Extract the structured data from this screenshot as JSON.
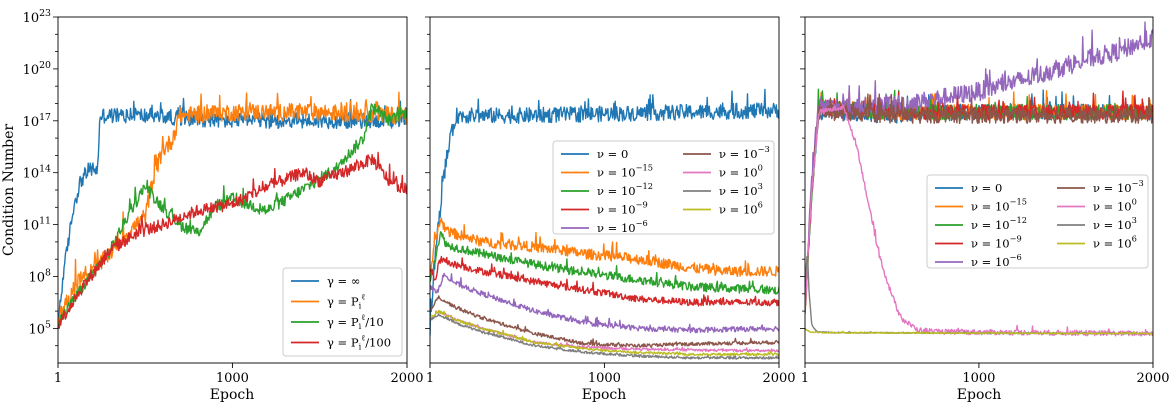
{
  "figure": {
    "ylabel": "Condition Number"
  },
  "chart_data": [
    {
      "type": "line",
      "panel": 1,
      "xlabel": "Epoch",
      "ylabel": "Condition Number",
      "x_range": [
        1,
        2000
      ],
      "x_ticks": [
        "1",
        "1000",
        "2000"
      ],
      "y_log_range": [
        3,
        23
      ],
      "y_ticks": [
        "10^5",
        "10^8",
        "10^11",
        "10^14",
        "10^17",
        "10^20",
        "10^23"
      ],
      "legend": "bottom-right",
      "legend_columns": 1,
      "series": [
        {
          "name": "γ = ∞",
          "color": "#1f77b4",
          "noise": 0.45,
          "points": [
            [
              1,
              5
            ],
            [
              30,
              8
            ],
            [
              60,
              10
            ],
            [
              90,
              12
            ],
            [
              130,
              13.5
            ],
            [
              180,
              14.2
            ],
            [
              230,
              14.2
            ],
            [
              240,
              17.3
            ],
            [
              500,
              17.3
            ],
            [
              1000,
              17
            ],
            [
              1500,
              17
            ],
            [
              2000,
              17
            ]
          ]
        },
        {
          "name": "γ = P_i^ℓ",
          "color": "#ff7f0e",
          "noise": 0.5,
          "points": [
            [
              1,
              5.5
            ],
            [
              100,
              7.5
            ],
            [
              250,
              8.8
            ],
            [
              400,
              10.5
            ],
            [
              500,
              11.5
            ],
            [
              550,
              13.8
            ],
            [
              600,
              15.3
            ],
            [
              650,
              15.8
            ],
            [
              700,
              17.3
            ],
            [
              1000,
              17.5
            ],
            [
              1500,
              17.5
            ],
            [
              2000,
              17.3
            ]
          ]
        },
        {
          "name": "γ = P_i^ℓ/10",
          "color": "#2ca02c",
          "noise": 0.35,
          "points": [
            [
              1,
              5.3
            ],
            [
              150,
              7.5
            ],
            [
              300,
              9.5
            ],
            [
              400,
              11.5
            ],
            [
              500,
              13.2
            ],
            [
              600,
              12
            ],
            [
              700,
              11
            ],
            [
              800,
              10.5
            ],
            [
              900,
              12
            ],
            [
              1000,
              12.5
            ],
            [
              1200,
              11.8
            ],
            [
              1400,
              13
            ],
            [
              1600,
              14.3
            ],
            [
              1750,
              16
            ],
            [
              1800,
              17.8
            ],
            [
              1900,
              17
            ],
            [
              2000,
              17.5
            ]
          ]
        },
        {
          "name": "γ = P_i^ℓ/100",
          "color": "#d62728",
          "noise": 0.35,
          "points": [
            [
              1,
              5.2
            ],
            [
              150,
              7.5
            ],
            [
              300,
              9.5
            ],
            [
              450,
              10.5
            ],
            [
              600,
              11
            ],
            [
              800,
              11.8
            ],
            [
              1000,
              12.2
            ],
            [
              1200,
              13.2
            ],
            [
              1400,
              14
            ],
            [
              1500,
              13.5
            ],
            [
              1700,
              14.3
            ],
            [
              1800,
              14.8
            ],
            [
              1900,
              13.5
            ],
            [
              2000,
              13
            ]
          ]
        }
      ]
    },
    {
      "type": "line",
      "panel": 2,
      "xlabel": "Epoch",
      "x_range": [
        1,
        2000
      ],
      "x_ticks": [
        "1",
        "1000",
        "2000"
      ],
      "y_log_range": [
        3,
        23
      ],
      "legend": "middle-right",
      "legend_columns": 2,
      "series": [
        {
          "name": "ν = 0",
          "color": "#1f77b4",
          "noise": 0.45,
          "points": [
            [
              1,
              5
            ],
            [
              30,
              9
            ],
            [
              60,
              12
            ],
            [
              90,
              14.5
            ],
            [
              120,
              16
            ],
            [
              150,
              17.3
            ],
            [
              500,
              17.3
            ],
            [
              1000,
              17.4
            ],
            [
              1500,
              17.5
            ],
            [
              2000,
              17.6
            ]
          ]
        },
        {
          "name": "ν = 10^-15",
          "color": "#ff7f0e",
          "noise": 0.3,
          "points": [
            [
              1,
              8
            ],
            [
              30,
              10
            ],
            [
              60,
              11.3
            ],
            [
              100,
              10.6
            ],
            [
              300,
              10
            ],
            [
              600,
              9.7
            ],
            [
              900,
              9.3
            ],
            [
              1200,
              9
            ],
            [
              1500,
              8.5
            ],
            [
              1700,
              8.3
            ],
            [
              2000,
              8.3
            ]
          ]
        },
        {
          "name": "ν = 10^-12",
          "color": "#2ca02c",
          "noise": 0.25,
          "points": [
            [
              1,
              7.8
            ],
            [
              30,
              9
            ],
            [
              60,
              10.5
            ],
            [
              100,
              9.8
            ],
            [
              300,
              9.3
            ],
            [
              600,
              8.7
            ],
            [
              900,
              8.2
            ],
            [
              1200,
              7.8
            ],
            [
              1500,
              7.4
            ],
            [
              2000,
              7.2
            ]
          ]
        },
        {
          "name": "ν = 10^-9",
          "color": "#d62728",
          "noise": 0.2,
          "points": [
            [
              1,
              8.5
            ],
            [
              30,
              7.8
            ],
            [
              60,
              9
            ],
            [
              100,
              8.8
            ],
            [
              300,
              8.3
            ],
            [
              600,
              7.7
            ],
            [
              900,
              7.2
            ],
            [
              1200,
              6.7
            ],
            [
              1500,
              6.5
            ],
            [
              2000,
              6.5
            ]
          ]
        },
        {
          "name": "ν = 10^-6",
          "color": "#9467bd",
          "noise": 0.15,
          "points": [
            [
              1,
              7.5
            ],
            [
              40,
              7
            ],
            [
              80,
              8.1
            ],
            [
              150,
              7.6
            ],
            [
              300,
              7
            ],
            [
              600,
              6
            ],
            [
              900,
              5.3
            ],
            [
              1200,
              5
            ],
            [
              1500,
              4.9
            ],
            [
              2000,
              5
            ]
          ]
        },
        {
          "name": "ν = 10^-3",
          "color": "#8c564b",
          "noise": 0.1,
          "points": [
            [
              1,
              6
            ],
            [
              50,
              6.8
            ],
            [
              150,
              6.2
            ],
            [
              300,
              5.6
            ],
            [
              600,
              4.7
            ],
            [
              900,
              4.1
            ],
            [
              1200,
              4
            ],
            [
              1500,
              4.1
            ],
            [
              2000,
              4.2
            ]
          ]
        },
        {
          "name": "ν = 10^0",
          "color": "#e377c2",
          "noise": 0.07,
          "points": [
            [
              1,
              5.5
            ],
            [
              50,
              6
            ],
            [
              150,
              5.5
            ],
            [
              300,
              5
            ],
            [
              600,
              4.2
            ],
            [
              900,
              3.9
            ],
            [
              1200,
              3.8
            ],
            [
              1500,
              3.75
            ],
            [
              2000,
              3.7
            ]
          ]
        },
        {
          "name": "ν = 10^3",
          "color": "#7f7f7f",
          "noise": 0.07,
          "points": [
            [
              1,
              5.5
            ],
            [
              50,
              5.8
            ],
            [
              150,
              5.3
            ],
            [
              300,
              4.8
            ],
            [
              600,
              4
            ],
            [
              900,
              3.6
            ],
            [
              1200,
              3.4
            ],
            [
              1500,
              3.3
            ],
            [
              2000,
              3.3
            ]
          ]
        },
        {
          "name": "ν = 10^6",
          "color": "#bcbd22",
          "noise": 0.07,
          "points": [
            [
              1,
              5.6
            ],
            [
              50,
              6
            ],
            [
              150,
              5.5
            ],
            [
              300,
              5
            ],
            [
              600,
              4.2
            ],
            [
              900,
              3.8
            ],
            [
              1200,
              3.6
            ],
            [
              1500,
              3.5
            ],
            [
              2000,
              3.5
            ]
          ]
        }
      ]
    },
    {
      "type": "line",
      "panel": 3,
      "xlabel": "Epoch",
      "x_range": [
        1,
        2000
      ],
      "x_ticks": [
        "1",
        "1000",
        "2000"
      ],
      "y_log_range": [
        3,
        23
      ],
      "legend": "middle-right",
      "legend_columns": 2,
      "series": [
        {
          "name": "ν = 0",
          "color": "#1f77b4",
          "noise": 0.45,
          "points": [
            [
              1,
              6
            ],
            [
              40,
              13
            ],
            [
              80,
              17.5
            ],
            [
              500,
              17.3
            ],
            [
              1000,
              17.5
            ],
            [
              2000,
              17.5
            ]
          ]
        },
        {
          "name": "ν = 10^-15",
          "color": "#ff7f0e",
          "noise": 0.45,
          "points": [
            [
              1,
              6
            ],
            [
              40,
              13
            ],
            [
              80,
              17.8
            ],
            [
              500,
              17.5
            ],
            [
              1000,
              17.5
            ],
            [
              2000,
              17.5
            ]
          ]
        },
        {
          "name": "ν = 10^-12",
          "color": "#2ca02c",
          "noise": 0.45,
          "points": [
            [
              1,
              6
            ],
            [
              40,
              13
            ],
            [
              80,
              17.8
            ],
            [
              500,
              17.5
            ],
            [
              1000,
              17.5
            ],
            [
              2000,
              17.5
            ]
          ]
        },
        {
          "name": "ν = 10^-9",
          "color": "#d62728",
          "noise": 0.45,
          "points": [
            [
              1,
              6
            ],
            [
              40,
              13
            ],
            [
              80,
              17.8
            ],
            [
              500,
              17.5
            ],
            [
              1000,
              17.5
            ],
            [
              2000,
              17.5
            ]
          ]
        },
        {
          "name": "ν = 10^-6",
          "color": "#9467bd",
          "noise": 0.55,
          "points": [
            [
              1,
              6
            ],
            [
              40,
              14
            ],
            [
              80,
              17.8
            ],
            [
              300,
              17.8
            ],
            [
              600,
              18
            ],
            [
              1000,
              18.7
            ],
            [
              1300,
              19.5
            ],
            [
              1600,
              20.5
            ],
            [
              1800,
              21
            ],
            [
              2000,
              21.8
            ]
          ]
        },
        {
          "name": "ν = 10^-3",
          "color": "#8c564b",
          "noise": 0.45,
          "points": [
            [
              1,
              6
            ],
            [
              40,
              13
            ],
            [
              80,
              17.5
            ],
            [
              500,
              17.3
            ],
            [
              1000,
              17.3
            ],
            [
              2000,
              17.3
            ]
          ]
        },
        {
          "name": "ν = 10^0",
          "color": "#e377c2",
          "noise": 0.15,
          "points": [
            [
              1,
              6
            ],
            [
              40,
              13
            ],
            [
              80,
              17.5
            ],
            [
              220,
              17.8
            ],
            [
              250,
              17
            ],
            [
              300,
              15.5
            ],
            [
              360,
              12.5
            ],
            [
              420,
              9.5
            ],
            [
              480,
              7.5
            ],
            [
              550,
              5.6
            ],
            [
              650,
              4.9
            ],
            [
              800,
              4.8
            ],
            [
              2000,
              4.7
            ]
          ]
        },
        {
          "name": "ν = 10^3",
          "color": "#7f7f7f",
          "noise": 0.03,
          "points": [
            [
              1,
              7.5
            ],
            [
              15,
              9.5
            ],
            [
              25,
              7
            ],
            [
              40,
              5.2
            ],
            [
              70,
              4.8
            ],
            [
              200,
              4.75
            ],
            [
              2000,
              4.7
            ]
          ]
        },
        {
          "name": "ν = 10^6",
          "color": "#bcbd22",
          "noise": 0.03,
          "points": [
            [
              1,
              5
            ],
            [
              30,
              4.8
            ],
            [
              100,
              4.75
            ],
            [
              2000,
              4.7
            ]
          ]
        }
      ]
    }
  ]
}
